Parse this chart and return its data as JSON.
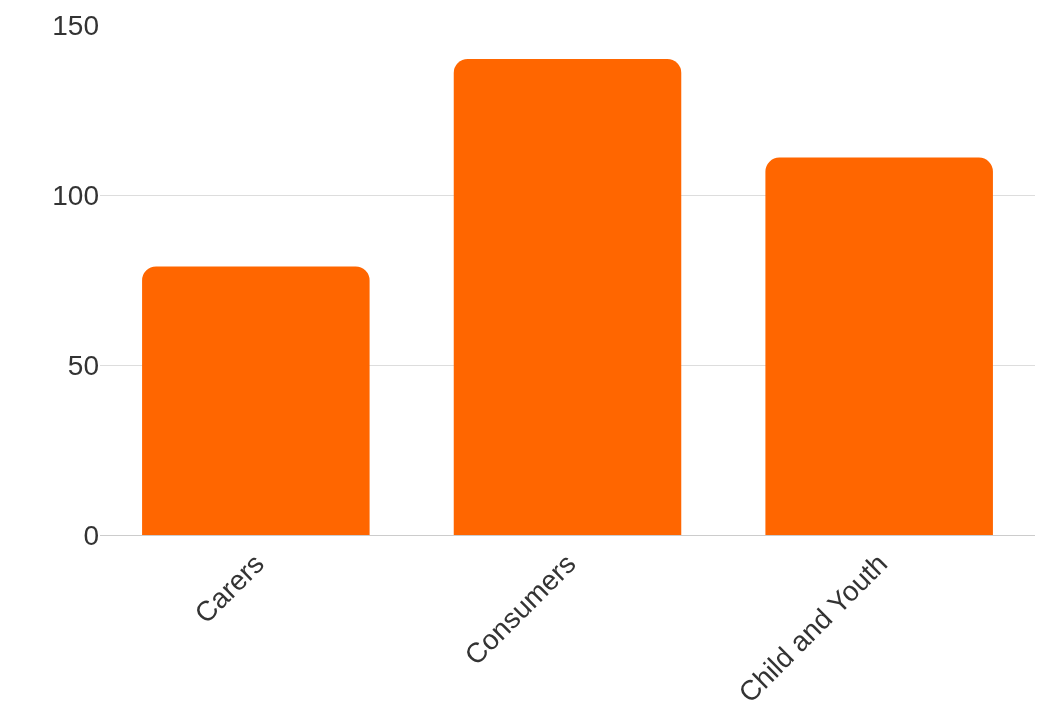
{
  "chart_data": {
    "type": "bar",
    "categories": [
      "Carers",
      "Consumers",
      "Child and Youth"
    ],
    "values": [
      79,
      140,
      111
    ],
    "color": "#ff6600",
    "ylim": [
      0,
      150
    ],
    "yticks": [
      0,
      50,
      100,
      150
    ],
    "grid": "y"
  }
}
